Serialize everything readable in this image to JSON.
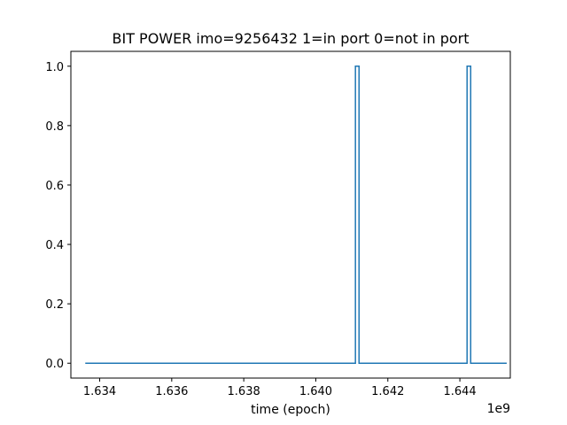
{
  "chart_data": {
    "type": "line",
    "title": "BIT POWER imo=9256432 1=in port 0=not in port",
    "xlabel": "time (epoch)",
    "ylabel": "",
    "x_offset_label": "1e9",
    "xlim": [
      1.6332,
      1.6454
    ],
    "ylim": [
      -0.05,
      1.05
    ],
    "x_ticks": [
      1.634,
      1.636,
      1.638,
      1.64,
      1.642,
      1.644
    ],
    "x_tick_labels": [
      "1.634",
      "1.636",
      "1.638",
      "1.640",
      "1.642",
      "1.644"
    ],
    "y_ticks": [
      0.0,
      0.2,
      0.4,
      0.6,
      0.8,
      1.0
    ],
    "y_tick_labels": [
      "0.0",
      "0.2",
      "0.4",
      "0.6",
      "0.8",
      "1.0"
    ],
    "grid": false,
    "series": [
      {
        "color": "#1f77b4",
        "x": [
          1.6336,
          1.6411,
          1.6411,
          1.6412,
          1.6412,
          1.6442,
          1.6442,
          1.6443,
          1.6443,
          1.6453
        ],
        "y": [
          0,
          0,
          1,
          1,
          0,
          0,
          1,
          1,
          0,
          0
        ]
      }
    ]
  }
}
